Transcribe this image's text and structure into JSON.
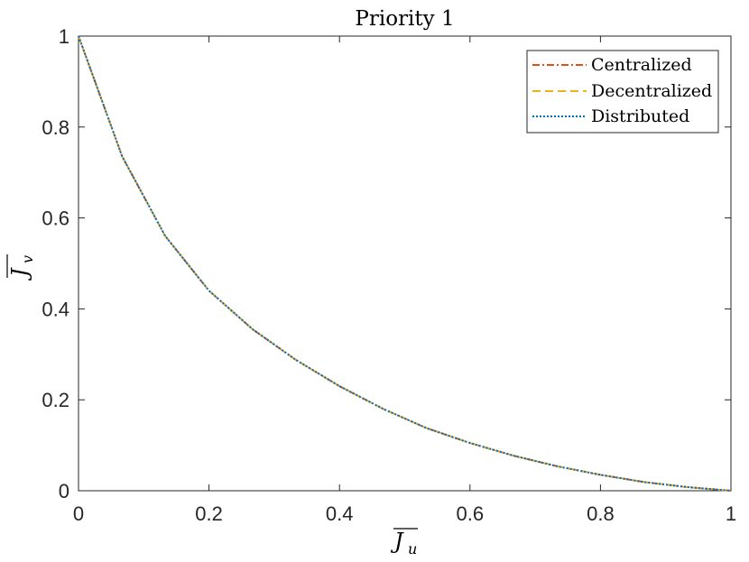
{
  "chart_data": {
    "type": "line",
    "title": "Priority 1",
    "xlabel": "J",
    "xlabel_sub": "u",
    "ylabel": "J",
    "ylabel_sub": "v",
    "xlim": [
      0,
      1
    ],
    "ylim": [
      0,
      1
    ],
    "xticks": [
      0,
      0.2,
      0.4,
      0.6,
      0.8,
      1
    ],
    "xtick_labels": [
      "0",
      "0.2",
      "0.4",
      "0.6",
      "0.8",
      "1"
    ],
    "yticks": [
      0,
      0.2,
      0.4,
      0.6,
      0.8,
      1
    ],
    "ytick_labels": [
      "0",
      "0.2",
      "0.4",
      "0.6",
      "0.8",
      "1"
    ],
    "grid": false,
    "legend_position": "top-right",
    "series": [
      {
        "name": "Centralized",
        "color": "#D95319",
        "dash": "dash-dot",
        "x": [
          0,
          0.067,
          0.133,
          0.2,
          0.267,
          0.333,
          0.4,
          0.467,
          0.533,
          0.6,
          0.667,
          0.733,
          0.8,
          0.867,
          0.933,
          1
        ],
        "y": [
          1,
          0.735,
          0.56,
          0.44,
          0.355,
          0.288,
          0.23,
          0.18,
          0.138,
          0.105,
          0.077,
          0.054,
          0.035,
          0.019,
          0.008,
          0
        ]
      },
      {
        "name": "Decentralized",
        "color": "#EDB120",
        "dash": "dashed",
        "x": [
          0,
          0.067,
          0.133,
          0.2,
          0.267,
          0.333,
          0.4,
          0.467,
          0.533,
          0.6,
          0.667,
          0.733,
          0.8,
          0.867,
          0.933,
          1
        ],
        "y": [
          1,
          0.735,
          0.56,
          0.44,
          0.355,
          0.288,
          0.23,
          0.18,
          0.138,
          0.105,
          0.077,
          0.054,
          0.035,
          0.019,
          0.008,
          0
        ]
      },
      {
        "name": "Distributed",
        "color": "#0072BD",
        "dash": "dotted",
        "x": [
          0,
          0.067,
          0.133,
          0.2,
          0.267,
          0.333,
          0.4,
          0.467,
          0.533,
          0.6,
          0.667,
          0.733,
          0.8,
          0.867,
          0.933,
          1
        ],
        "y": [
          1,
          0.735,
          0.56,
          0.44,
          0.355,
          0.288,
          0.23,
          0.18,
          0.138,
          0.105,
          0.077,
          0.054,
          0.035,
          0.019,
          0.008,
          0
        ]
      }
    ]
  }
}
